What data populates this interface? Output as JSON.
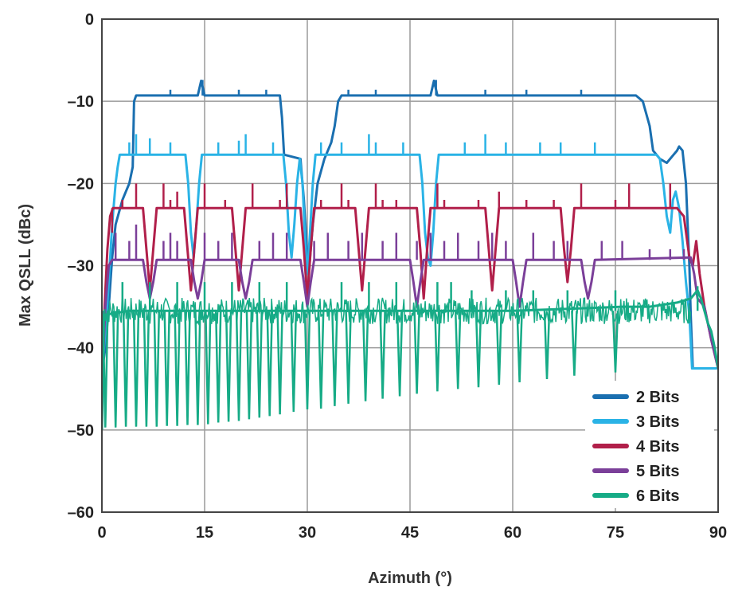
{
  "chart_data": {
    "type": "line",
    "title": "",
    "xlabel": "Azimuth (°)",
    "ylabel": "Max QSLL (dBc)",
    "xlim": [
      0,
      90
    ],
    "ylim": [
      -60,
      0
    ],
    "xticks": [
      0,
      15,
      30,
      45,
      60,
      75,
      90
    ],
    "xtick_labels": [
      "0",
      "15",
      "30",
      "45",
      "60",
      "75",
      "90"
    ],
    "yticks": [
      0,
      -10,
      -20,
      -30,
      -40,
      -50,
      -60
    ],
    "ytick_labels": [
      "0",
      "–10",
      "–20",
      "–30",
      "–40",
      "–50",
      "–60"
    ],
    "grid": true,
    "legend_position": "bottom-right",
    "series": [
      {
        "name": "2 Bits",
        "color": "#1a6fb0",
        "points": [
          [
            0,
            -43
          ],
          [
            0.5,
            -40
          ],
          [
            1,
            -35
          ],
          [
            1.5,
            -29
          ],
          [
            2,
            -25
          ],
          [
            3,
            -22
          ],
          [
            3.5,
            -21
          ],
          [
            4,
            -20
          ],
          [
            4.5,
            -18
          ],
          [
            4.7,
            -10
          ],
          [
            5,
            -9.3
          ],
          [
            14,
            -9.3
          ],
          [
            14.5,
            -7.5
          ],
          [
            15,
            -9.3
          ],
          [
            26,
            -9.3
          ],
          [
            26.3,
            -12
          ],
          [
            26.6,
            -16.5
          ],
          [
            29,
            -17
          ],
          [
            29.5,
            -22
          ],
          [
            30,
            -29
          ],
          [
            30.3,
            -30
          ],
          [
            30.8,
            -25
          ],
          [
            31.5,
            -20
          ],
          [
            32.5,
            -17
          ],
          [
            33.5,
            -15
          ],
          [
            34,
            -13
          ],
          [
            34.5,
            -10
          ],
          [
            35,
            -9.3
          ],
          [
            48,
            -9.3
          ],
          [
            48.5,
            -7.5
          ],
          [
            49,
            -9.3
          ],
          [
            78,
            -9.3
          ],
          [
            79,
            -10
          ],
          [
            80,
            -13
          ],
          [
            80.5,
            -16
          ],
          [
            81.5,
            -17
          ],
          [
            82.5,
            -17.5
          ],
          [
            83.5,
            -16.5
          ],
          [
            84,
            -16
          ],
          [
            84.3,
            -15.5
          ],
          [
            84.8,
            -16
          ],
          [
            85.3,
            -20
          ],
          [
            85.8,
            -30
          ],
          [
            86,
            -36
          ],
          [
            86.3,
            -42.5
          ],
          [
            90,
            -42.5
          ]
        ]
      },
      {
        "name": "3 Bits",
        "color": "#2ab3e6",
        "points": [
          [
            0,
            -43
          ],
          [
            0.5,
            -38
          ],
          [
            1,
            -32
          ],
          [
            1.5,
            -25
          ],
          [
            2,
            -20
          ],
          [
            2.3,
            -18
          ],
          [
            2.6,
            -16.5
          ],
          [
            12.2,
            -16.5
          ],
          [
            12.6,
            -20
          ],
          [
            13,
            -26
          ],
          [
            13.4,
            -29
          ],
          [
            13.8,
            -25
          ],
          [
            14.2,
            -20
          ],
          [
            14.6,
            -16.5
          ],
          [
            26.5,
            -16.5
          ],
          [
            26.9,
            -20
          ],
          [
            27.3,
            -26
          ],
          [
            27.7,
            -29
          ],
          [
            28.1,
            -25
          ],
          [
            28.5,
            -20
          ],
          [
            28.9,
            -17
          ],
          [
            29.3,
            -20
          ],
          [
            29.8,
            -29
          ],
          [
            30,
            -31
          ],
          [
            30.4,
            -26
          ],
          [
            30.8,
            -20
          ],
          [
            31.2,
            -16.5
          ],
          [
            46.4,
            -16.5
          ],
          [
            46.8,
            -20
          ],
          [
            47.2,
            -26
          ],
          [
            47.6,
            -29
          ],
          [
            48,
            -30
          ],
          [
            48.4,
            -26
          ],
          [
            48.8,
            -20
          ],
          [
            49.2,
            -16.5
          ],
          [
            81,
            -16.5
          ],
          [
            81.5,
            -17
          ],
          [
            82,
            -20
          ],
          [
            82.5,
            -24
          ],
          [
            83,
            -26
          ],
          [
            83.4,
            -22
          ],
          [
            83.8,
            -21
          ],
          [
            84.3,
            -23
          ],
          [
            84.8,
            -27
          ],
          [
            85.3,
            -32
          ],
          [
            85.8,
            -36
          ],
          [
            86.2,
            -42.5
          ],
          [
            90,
            -42.5
          ]
        ]
      },
      {
        "name": "4 Bits",
        "color": "#b11f4a",
        "points": [
          [
            0,
            -45
          ],
          [
            0.4,
            -35
          ],
          [
            0.8,
            -28
          ],
          [
            1.2,
            -24
          ],
          [
            1.6,
            -23
          ],
          [
            6,
            -23
          ],
          [
            6.5,
            -28
          ],
          [
            7,
            -33
          ],
          [
            7.5,
            -28
          ],
          [
            8,
            -23
          ],
          [
            12,
            -23
          ],
          [
            12.5,
            -28
          ],
          [
            13,
            -33
          ],
          [
            13.5,
            -28
          ],
          [
            14,
            -23
          ],
          [
            19,
            -23
          ],
          [
            19.5,
            -28
          ],
          [
            20,
            -33
          ],
          [
            20.5,
            -28
          ],
          [
            21,
            -23
          ],
          [
            29,
            -23
          ],
          [
            29.5,
            -28
          ],
          [
            30,
            -34
          ],
          [
            30.5,
            -28
          ],
          [
            31,
            -23
          ],
          [
            37,
            -23
          ],
          [
            37.5,
            -28
          ],
          [
            38,
            -33
          ],
          [
            38.5,
            -28
          ],
          [
            39,
            -23
          ],
          [
            46,
            -23
          ],
          [
            46.5,
            -28
          ],
          [
            47,
            -34
          ],
          [
            47.5,
            -28
          ],
          [
            48,
            -23
          ],
          [
            56,
            -23
          ],
          [
            56.5,
            -28
          ],
          [
            57,
            -33
          ],
          [
            57.5,
            -28
          ],
          [
            58,
            -23
          ],
          [
            67,
            -23
          ],
          [
            67.5,
            -28
          ],
          [
            68,
            -32
          ],
          [
            68.5,
            -28
          ],
          [
            69,
            -23
          ],
          [
            84,
            -23
          ],
          [
            85,
            -24
          ],
          [
            85.8,
            -29
          ],
          [
            86.3,
            -30
          ],
          [
            86.8,
            -27
          ],
          [
            87.3,
            -31
          ],
          [
            88,
            -35
          ],
          [
            89,
            -39
          ],
          [
            90,
            -42.5
          ]
        ]
      },
      {
        "name": "5 Bits",
        "color": "#7b3f99",
        "points": [
          [
            0,
            -45
          ],
          [
            0.5,
            -35
          ],
          [
            1,
            -30
          ],
          [
            1.5,
            -29.3
          ],
          [
            6,
            -29.3
          ],
          [
            6.5,
            -32
          ],
          [
            7,
            -34
          ],
          [
            7.5,
            -32
          ],
          [
            8,
            -29.3
          ],
          [
            13,
            -29.3
          ],
          [
            13.5,
            -32
          ],
          [
            14,
            -34
          ],
          [
            14.5,
            -32
          ],
          [
            15,
            -29.3
          ],
          [
            20,
            -29.3
          ],
          [
            20.5,
            -32
          ],
          [
            21,
            -34
          ],
          [
            21.5,
            -32
          ],
          [
            22,
            -29.3
          ],
          [
            29,
            -29.3
          ],
          [
            29.5,
            -32
          ],
          [
            30,
            -35
          ],
          [
            30.5,
            -32
          ],
          [
            31,
            -29.3
          ],
          [
            45,
            -29.3
          ],
          [
            45.5,
            -32
          ],
          [
            46,
            -35
          ],
          [
            46.5,
            -32
          ],
          [
            47,
            -29.3
          ],
          [
            60,
            -29.3
          ],
          [
            60.5,
            -32
          ],
          [
            61,
            -35
          ],
          [
            61.5,
            -32
          ],
          [
            62,
            -29.3
          ],
          [
            70,
            -29.3
          ],
          [
            70.5,
            -32
          ],
          [
            71,
            -34
          ],
          [
            71.5,
            -32
          ],
          [
            72,
            -29.3
          ],
          [
            86,
            -29
          ],
          [
            86.5,
            -31
          ],
          [
            87,
            -34
          ],
          [
            88,
            -35
          ],
          [
            89,
            -39
          ],
          [
            90,
            -42.5
          ]
        ]
      },
      {
        "name": "6 Bits",
        "color": "#16ab86",
        "points": [
          [
            0,
            -50
          ],
          [
            0.3,
            -36
          ],
          [
            4,
            -35.5
          ],
          [
            40,
            -35.5
          ],
          [
            60,
            -35.5
          ],
          [
            70,
            -35.2
          ],
          [
            76,
            -35
          ],
          [
            80,
            -35
          ],
          [
            84,
            -34.5
          ],
          [
            86,
            -34
          ],
          [
            87,
            -33
          ],
          [
            87.5,
            -34
          ],
          [
            88,
            -35.5
          ],
          [
            88.5,
            -37
          ],
          [
            89,
            -38
          ],
          [
            89.5,
            -40
          ],
          [
            90,
            -42.5
          ]
        ]
      }
    ],
    "series_6bit_dips": {
      "x": [
        0.5,
        2,
        3.5,
        5,
        6.5,
        8,
        9.5,
        11,
        12.5,
        14,
        15.5,
        17,
        18.5,
        20,
        21.5,
        23,
        24.5,
        26,
        28,
        30,
        32,
        34,
        36,
        38.5,
        41,
        43.5,
        46,
        49,
        52,
        55,
        58,
        61,
        65,
        69,
        75
      ],
      "y": [
        -49.7,
        -49.7,
        -49.6,
        -49.6,
        -49.6,
        -49.6,
        -49.5,
        -49.5,
        -49.4,
        -49.4,
        -49.3,
        -49.1,
        -49,
        -48.9,
        -48.7,
        -48.5,
        -48.3,
        -48.1,
        -47.8,
        -47.5,
        -47.4,
        -47.1,
        -46.8,
        -46.5,
        -46.2,
        -45.9,
        -45.6,
        -45.3,
        -45,
        -44.8,
        -44.5,
        -44.2,
        -43.8,
        -43.4,
        -43
      ]
    },
    "series_6bit_spikes": {
      "x": [
        3,
        7,
        11,
        15,
        19,
        23,
        27,
        35,
        39,
        43,
        49,
        51,
        54,
        59,
        63,
        68,
        75,
        87
      ],
      "y": [
        -32,
        -32,
        -32,
        -32,
        -32,
        -32,
        -32,
        -32,
        -32,
        -32,
        -32,
        -32,
        -33,
        -33,
        -33,
        -33,
        -33,
        -32.5
      ]
    },
    "series_2bit_spikes": {
      "x": [
        10,
        14.7,
        20,
        24,
        36,
        40,
        48.8,
        56,
        62,
        70
      ],
      "y": [
        -8.6,
        -7.4,
        -8.6,
        -8.6,
        -8.6,
        -8.6,
        -7.4,
        -8.6,
        -8.6,
        -8.6
      ]
    },
    "series_3bit_spikes": {
      "x": [
        4,
        5,
        7,
        10,
        17,
        20,
        21,
        25,
        32,
        35,
        39,
        40,
        44,
        53,
        56,
        59,
        64,
        67,
        72
      ],
      "y": [
        -15,
        -14,
        -14.5,
        -15,
        -15,
        -14.8,
        -14,
        -15,
        -15,
        -15,
        -14,
        -15,
        -15,
        -15,
        -14,
        -15,
        -15,
        -15,
        -15
      ]
    },
    "series_4bit_spikes": {
      "x": [
        1.5,
        3,
        5,
        9,
        10,
        11,
        15,
        18,
        22,
        26,
        27,
        32,
        35,
        36,
        40,
        41,
        43,
        49,
        50,
        55,
        58,
        62,
        66,
        70,
        75,
        77,
        83
      ],
      "y": [
        -26,
        -22,
        -20,
        -20,
        -22,
        -21,
        -20,
        -22,
        -20,
        -22,
        -20,
        -22,
        -20,
        -22,
        -20,
        -22,
        -22,
        -20,
        -22,
        -22,
        -21,
        -22,
        -22,
        -20,
        -22,
        -20,
        -20
      ]
    },
    "series_5bit_spikes": {
      "x": [
        2,
        4,
        5,
        9,
        10,
        11,
        15,
        17,
        19,
        23,
        25,
        27,
        31,
        33,
        36,
        38,
        41,
        43,
        46,
        48,
        50,
        52,
        55,
        57,
        59,
        63,
        66,
        68,
        73,
        76,
        80,
        83,
        85
      ],
      "y": [
        -26,
        -27,
        -25,
        -27,
        -26,
        -27,
        -26,
        -27,
        -26,
        -27,
        -26,
        -26,
        -27,
        -26,
        -27,
        -26,
        -27,
        -26,
        -27,
        -26,
        -27,
        -26,
        -27,
        -26,
        -27,
        -26,
        -27,
        -27,
        -27,
        -27,
        -28,
        -28,
        -28
      ]
    }
  }
}
